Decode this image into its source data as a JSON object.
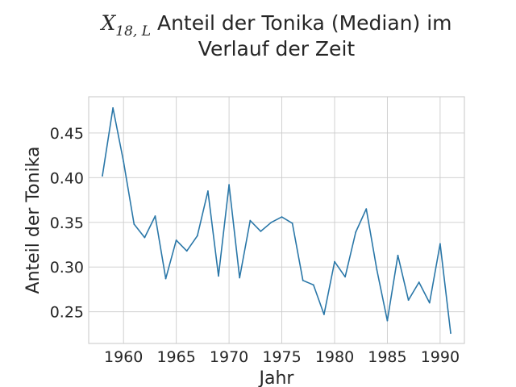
{
  "chart_data": {
    "type": "line",
    "title": {
      "math_symbol": "X",
      "math_subscript": "18, L",
      "line1_rest": " Anteil der Tonika (Median) im",
      "line2": "Verlauf der Zeit"
    },
    "xlabel": "Jahr",
    "ylabel": "Anteil der Tonika",
    "xlim": [
      1956.7,
      1992.3
    ],
    "ylim": [
      0.2145,
      0.4905
    ],
    "xticks": [
      1960,
      1965,
      1970,
      1975,
      1980,
      1985,
      1990
    ],
    "xtick_labels": [
      "1960",
      "1965",
      "1970",
      "1975",
      "1980",
      "1985",
      "1990"
    ],
    "yticks": [
      0.25,
      0.3,
      0.35,
      0.4,
      0.45
    ],
    "ytick_labels": [
      "0.25",
      "0.30",
      "0.35",
      "0.40",
      "0.45"
    ],
    "grid": true,
    "series": [
      {
        "color": "#2a77a8",
        "x": [
          1958,
          1959,
          1960,
          1961,
          1962,
          1963,
          1964,
          1965,
          1966,
          1967,
          1968,
          1969,
          1970,
          1971,
          1972,
          1973,
          1974,
          1975,
          1976,
          1977,
          1978,
          1979,
          1980,
          1981,
          1982,
          1983,
          1984,
          1985,
          1986,
          1987,
          1988,
          1989,
          1990,
          1991
        ],
        "y": [
          0.402,
          0.478,
          0.418,
          0.348,
          0.333,
          0.357,
          0.287,
          0.33,
          0.318,
          0.335,
          0.385,
          0.29,
          0.392,
          0.288,
          0.352,
          0.34,
          0.35,
          0.356,
          0.349,
          0.285,
          0.28,
          0.247,
          0.306,
          0.289,
          0.339,
          0.365,
          0.297,
          0.24,
          0.313,
          0.263,
          0.283,
          0.26,
          0.326,
          0.226
        ]
      }
    ]
  }
}
